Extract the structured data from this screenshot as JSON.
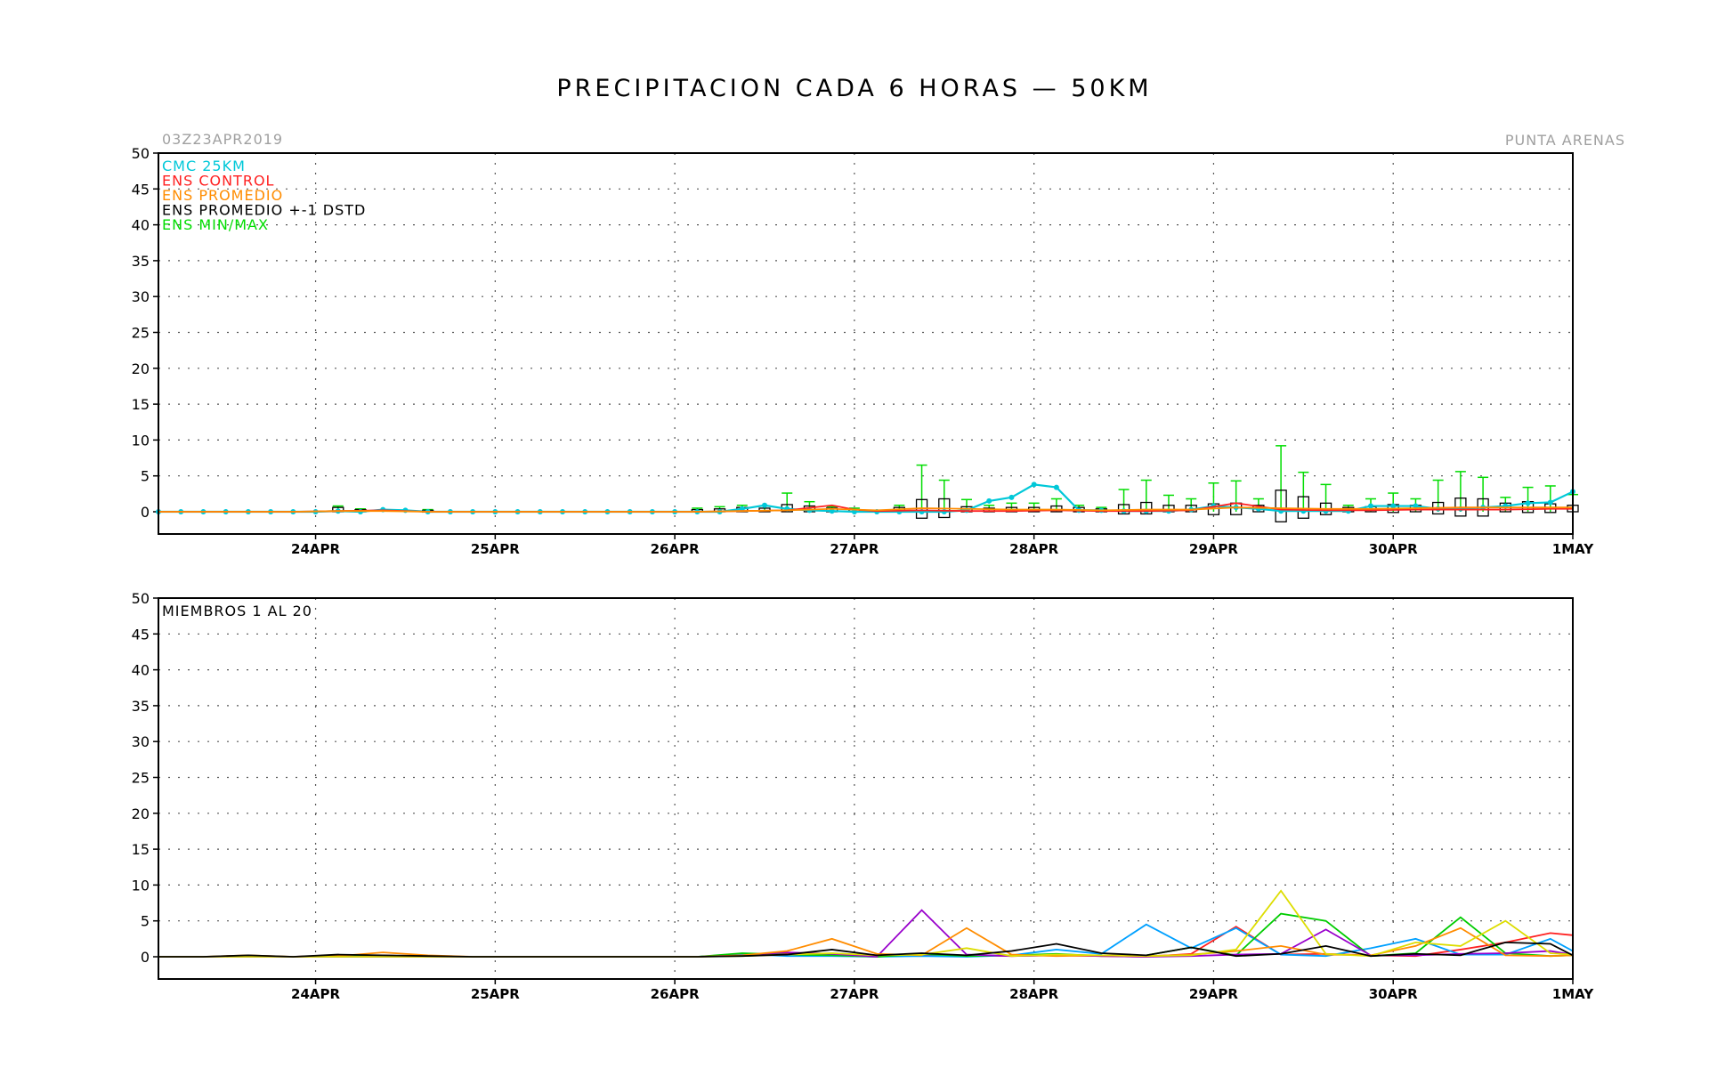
{
  "title": "PRECIPITACION CADA 6 HORAS — 50KM",
  "init_time": "03Z23APR2019",
  "location": "PUNTA ARENAS",
  "colors": {
    "cmc": "#00c8d8",
    "control": "#ff2020",
    "promedio": "#ff8c00",
    "std": "#000000",
    "minmax": "#00dd00",
    "members": [
      "#ff2020",
      "#00a0ff",
      "#00cc00",
      "#9900cc",
      "#ff8c00",
      "#dddd00",
      "#000000",
      "#8888ff",
      "#33cc99",
      "#ff66cc",
      "#996600",
      "#666666",
      "#00cccc",
      "#cc3366",
      "#66ff33",
      "#3333cc",
      "#ff9966",
      "#009933",
      "#cc66ff",
      "#888800"
    ]
  },
  "chart_data": [
    {
      "type": "line",
      "panel": "top",
      "ylim": [
        0,
        50
      ],
      "yticks": [
        0,
        5,
        10,
        15,
        20,
        25,
        30,
        35,
        40,
        45,
        50
      ],
      "xlim": [
        0,
        189
      ],
      "xticks": [
        {
          "label": "24APR",
          "x": 21
        },
        {
          "label": "25APR",
          "x": 45
        },
        {
          "label": "26APR",
          "x": 69
        },
        {
          "label": "27APR",
          "x": 93
        },
        {
          "label": "28APR",
          "x": 117
        },
        {
          "label": "29APR",
          "x": 141
        },
        {
          "label": "30APR",
          "x": 165
        },
        {
          "label": "1MAY",
          "x": 189
        }
      ],
      "xlabel": "",
      "ylabel": "",
      "grid": true,
      "legend_position": "top-left",
      "legend": [
        {
          "text": "CMC 25KM",
          "color_key": "cmc"
        },
        {
          "text": "ENS CONTROL",
          "color_key": "control"
        },
        {
          "text": "ENS PROMEDIO",
          "color_key": "promedio"
        },
        {
          "text": "ENS PROMEDIO +-1 DSTD",
          "color_key": "std"
        },
        {
          "text": "ENS MIN/MAX",
          "color_key": "minmax"
        }
      ],
      "series": [
        {
          "name": "CMC 25KM",
          "x": [
            0,
            3,
            6,
            9,
            12,
            15,
            18,
            21,
            24,
            27,
            30,
            33,
            36,
            39,
            42,
            45,
            48,
            51,
            54,
            57,
            60,
            63,
            66,
            69,
            72,
            75,
            78,
            81,
            84,
            87,
            90,
            93,
            96,
            99,
            102,
            105,
            108,
            111,
            114,
            117,
            120,
            123,
            126,
            129,
            132,
            135,
            138,
            141,
            144,
            147,
            150,
            153,
            156,
            159,
            162,
            165,
            168,
            171,
            174,
            177,
            180,
            183,
            186,
            189
          ],
          "values": [
            0,
            0,
            0,
            0,
            0,
            0,
            0,
            0,
            0.1,
            0,
            0.3,
            0.2,
            0,
            0,
            0,
            0,
            0,
            0,
            0,
            0,
            0,
            0,
            0,
            0,
            0,
            0,
            0.4,
            0.9,
            0.4,
            0.2,
            0.1,
            0,
            0,
            0,
            0,
            0,
            0.2,
            1.5,
            2,
            3.8,
            3.4,
            0.2,
            0.2,
            0.1,
            0.1,
            0.1,
            0.3,
            0.8,
            0.6,
            0.4,
            0.1,
            0.1,
            0.1,
            0.1,
            0.8,
            0.8,
            0.8,
            0.4,
            0.4,
            0.6,
            0.8,
            1.2,
            1.3,
            2.8
          ]
        },
        {
          "name": "ENS CONTROL",
          "x": [
            0,
            6,
            12,
            18,
            24,
            30,
            36,
            42,
            48,
            54,
            60,
            66,
            72,
            78,
            84,
            90,
            93,
            96,
            102,
            108,
            114,
            120,
            126,
            132,
            138,
            144,
            150,
            156,
            162,
            168,
            174,
            180,
            186,
            189
          ],
          "values": [
            0,
            0,
            0,
            0,
            0.1,
            0.2,
            0,
            0,
            0,
            0,
            0,
            0,
            0,
            0.1,
            0.2,
            0.9,
            0.3,
            0.1,
            0.2,
            0.1,
            0.1,
            0.2,
            0.1,
            0.1,
            0.2,
            1.2,
            0.3,
            0.2,
            0.2,
            0.3,
            0.3,
            0.3,
            0.4,
            0.4
          ]
        },
        {
          "name": "ENS PROMEDIO",
          "x": [
            0,
            6,
            12,
            18,
            24,
            30,
            36,
            42,
            48,
            54,
            60,
            66,
            72,
            78,
            84,
            90,
            96,
            102,
            108,
            114,
            120,
            126,
            132,
            138,
            144,
            150,
            156,
            162,
            168,
            174,
            180,
            186,
            189
          ],
          "values": [
            0,
            0,
            0,
            0,
            0.1,
            0.1,
            0,
            0,
            0,
            0,
            0,
            0,
            0,
            0.1,
            0.2,
            0.4,
            0.2,
            0.5,
            0.4,
            0.3,
            0.3,
            0.2,
            0.3,
            0.3,
            0.6,
            0.5,
            0.4,
            0.4,
            0.5,
            0.6,
            0.6,
            0.6,
            0.6
          ]
        }
      ],
      "ensemble_stats": {
        "x": [
          24,
          27,
          36,
          72,
          75,
          78,
          81,
          84,
          87,
          90,
          93,
          99,
          102,
          105,
          108,
          111,
          114,
          117,
          120,
          123,
          126,
          129,
          132,
          135,
          138,
          141,
          144,
          147,
          150,
          153,
          156,
          159,
          162,
          165,
          168,
          171,
          174,
          177,
          180,
          183,
          186,
          189
        ],
        "mean": [
          0.2,
          0.1,
          0.1,
          0.1,
          0.2,
          0.4,
          0.3,
          0.7,
          0.5,
          0.3,
          0.2,
          0.3,
          0.5,
          0.5,
          0.3,
          0.3,
          0.4,
          0.4,
          0.5,
          0.3,
          0.2,
          0.4,
          0.5,
          0.4,
          0.4,
          0.6,
          0.7,
          0.5,
          1.0,
          0.6,
          0.3,
          0.3,
          0.4,
          0.6,
          0.5,
          0.6,
          0.6,
          0.8,
          0.6,
          0.7,
          0.7,
          0.5
        ],
        "std_low": [
          0,
          0,
          0,
          0,
          0,
          0,
          0,
          0,
          0,
          0,
          0,
          0,
          0,
          0,
          0,
          0,
          0,
          0,
          0,
          0,
          0,
          0,
          0,
          0,
          0,
          0,
          0,
          0,
          0,
          0,
          0,
          0,
          0,
          0,
          0,
          0,
          0,
          0,
          0,
          0,
          0,
          0
        ],
        "std_high": [
          0.6,
          0.3,
          0.2,
          0.3,
          0.4,
          0.6,
          0.5,
          1.0,
          0.8,
          0.5,
          0.3,
          0.6,
          1.7,
          1.8,
          0.7,
          0.5,
          0.6,
          0.6,
          0.8,
          0.6,
          0.4,
          1.0,
          1.3,
          0.9,
          0.9,
          1.1,
          1.2,
          0.9,
          3.0,
          2.1,
          1.2,
          0.6,
          0.7,
          1.0,
          0.9,
          1.3,
          1.9,
          1.8,
          1.2,
          1.4,
          1.1,
          0.9
        ],
        "box_low": [
          0,
          0,
          0,
          0,
          0,
          0,
          0,
          0,
          0,
          0,
          0,
          0,
          -0.9,
          -0.8,
          0,
          0,
          0,
          0,
          0,
          0,
          0,
          -0.3,
          -0.3,
          0,
          0,
          -0.4,
          -0.4,
          0,
          -1.4,
          -0.9,
          -0.4,
          0,
          0,
          -0.1,
          0,
          -0.3,
          -0.6,
          -0.6,
          0,
          -0.1,
          -0.1,
          0
        ],
        "max": [
          0.8,
          0.4,
          0.3,
          0.5,
          0.7,
          0.9,
          0.8,
          2.6,
          1.4,
          0.7,
          0.5,
          0.9,
          6.5,
          4.4,
          1.7,
          0.9,
          1.2,
          1.2,
          1.8,
          0.9,
          0.6,
          3.1,
          4.4,
          2.3,
          1.8,
          4.0,
          4.3,
          1.8,
          9.2,
          5.5,
          3.8,
          0.9,
          1.8,
          2.6,
          1.8,
          4.4,
          5.6,
          4.8,
          2.0,
          3.4,
          3.6,
          2.4
        ]
      }
    },
    {
      "type": "line",
      "panel": "bottom",
      "label": "MIEMBROS 1 AL 20",
      "ylim": [
        0,
        50
      ],
      "yticks": [
        0,
        5,
        10,
        15,
        20,
        25,
        30,
        35,
        40,
        45,
        50
      ],
      "xlim": [
        0,
        189
      ],
      "xticks": [
        {
          "label": "24APR",
          "x": 21
        },
        {
          "label": "25APR",
          "x": 45
        },
        {
          "label": "26APR",
          "x": 69
        },
        {
          "label": "27APR",
          "x": 93
        },
        {
          "label": "28APR",
          "x": 117
        },
        {
          "label": "29APR",
          "x": 141
        },
        {
          "label": "30APR",
          "x": 165
        },
        {
          "label": "1MAY",
          "x": 189
        }
      ],
      "grid": true,
      "x": [
        0,
        6,
        12,
        18,
        24,
        30,
        36,
        42,
        48,
        54,
        60,
        66,
        72,
        78,
        84,
        90,
        96,
        102,
        108,
        114,
        120,
        126,
        132,
        138,
        144,
        150,
        156,
        162,
        168,
        174,
        180,
        186,
        189
      ],
      "series": [
        {
          "values": [
            0,
            0,
            0,
            0,
            0.2,
            0.2,
            0,
            0,
            0,
            0,
            0,
            0,
            0,
            0.3,
            0.5,
            0.2,
            0,
            0.3,
            0.2,
            0.1,
            0.2,
            0.1,
            0,
            0.4,
            4.2,
            0.3,
            0.4,
            0.2,
            0.1,
            1.0,
            2.0,
            3.3,
            3.0
          ]
        },
        {
          "values": [
            0,
            0,
            0,
            0,
            0,
            0,
            0,
            0,
            0,
            0,
            0,
            0,
            0,
            0.4,
            0.1,
            0.1,
            0,
            0.1,
            0,
            0.2,
            1.0,
            0.4,
            4.5,
            1.2,
            4.0,
            0.3,
            0.1,
            1.2,
            2.5,
            0.3,
            0.3,
            2.5,
            0.8
          ]
        },
        {
          "values": [
            0,
            0,
            0.1,
            0,
            0.1,
            0.1,
            0,
            0,
            0,
            0,
            0,
            0,
            0,
            0.5,
            0.3,
            0.2,
            0,
            0.4,
            0.1,
            0.2,
            0.4,
            0.1,
            0.2,
            1.3,
            0.2,
            6.0,
            5.0,
            0.1,
            0.5,
            5.5,
            0.5,
            0.1,
            0.2
          ]
        },
        {
          "values": [
            0,
            0,
            0,
            0,
            0,
            0,
            0,
            0,
            0,
            0,
            0,
            0,
            0,
            0.2,
            0.6,
            0.4,
            0,
            6.5,
            0.3,
            0.1,
            0.2,
            0.1,
            0,
            0.1,
            0.3,
            0.4,
            3.8,
            0.2,
            0.2,
            0.4,
            0.5,
            0.8,
            0.3
          ]
        },
        {
          "values": [
            0,
            0,
            0.2,
            0,
            0.1,
            0.6,
            0.2,
            0,
            0,
            0,
            0,
            0,
            0,
            0.2,
            0.8,
            2.5,
            0.4,
            0.2,
            4.0,
            0.3,
            0.1,
            0.2,
            0.1,
            0.3,
            0.8,
            1.5,
            0.3,
            0.2,
            1.5,
            4.0,
            0.2,
            0.1,
            0.2
          ]
        },
        {
          "values": [
            0,
            0,
            0,
            0,
            0,
            0,
            0,
            0,
            0,
            0,
            0,
            0,
            0,
            0.1,
            0.3,
            0.5,
            0.2,
            0.3,
            1.2,
            0.1,
            0.3,
            0.2,
            0.1,
            0.2,
            1.0,
            9.2,
            0.4,
            0.1,
            2.0,
            1.5,
            5.0,
            0.5,
            0.3
          ]
        },
        {
          "values": [
            0,
            0,
            0.2,
            0,
            0.3,
            0.2,
            0.1,
            0,
            0,
            0,
            0,
            0,
            0,
            0.1,
            0.3,
            1.0,
            0.2,
            0.5,
            0.2,
            0.8,
            1.8,
            0.5,
            0.2,
            1.3,
            0.1,
            0.4,
            1.5,
            0.1,
            0.4,
            0.2,
            2.0,
            1.8,
            0.2
          ]
        }
      ]
    }
  ]
}
